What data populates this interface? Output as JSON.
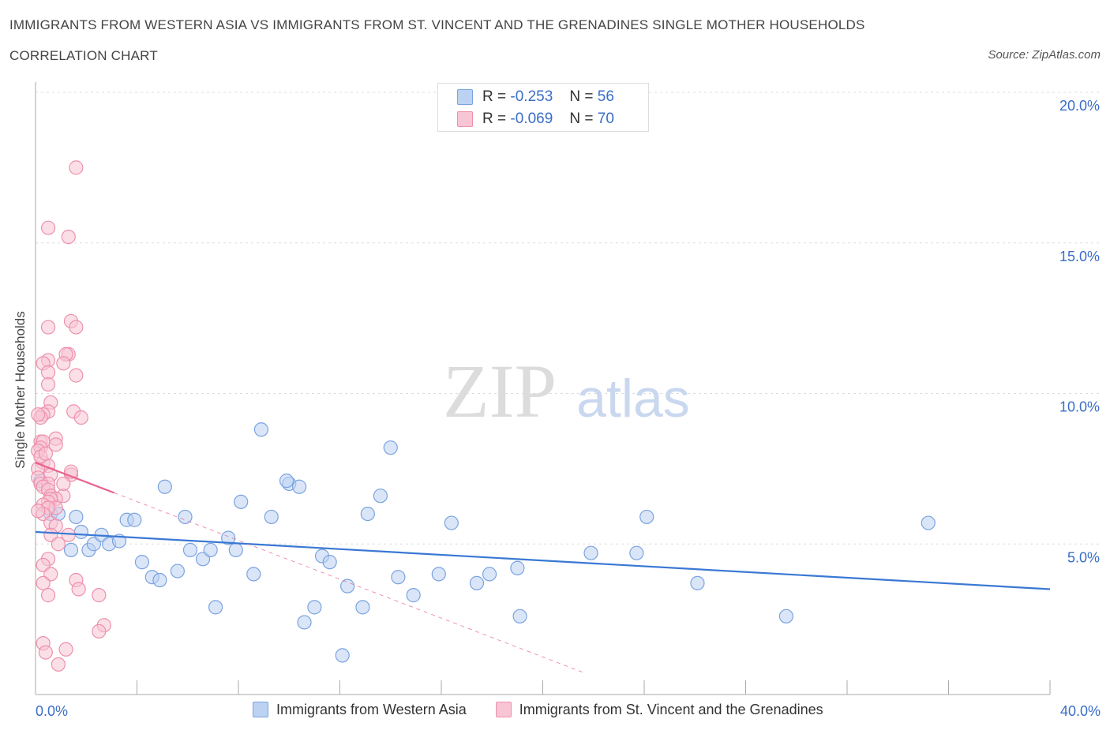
{
  "title": "IMMIGRANTS FROM WESTERN ASIA VS IMMIGRANTS FROM ST. VINCENT AND THE GRENADINES SINGLE MOTHER HOUSEHOLDS",
  "subtitle": "CORRELATION CHART",
  "source": "Source: ZipAtlas.com",
  "watermark": {
    "zip": "ZIP",
    "atlas": "atlas"
  },
  "legend_top": [
    {
      "r_label": "R =",
      "r_value": "-0.253",
      "n_label": "N =",
      "n_value": "56",
      "fill": "#bcd2f3",
      "stroke": "#7aa3e0"
    },
    {
      "r_label": "R =",
      "r_value": "-0.069",
      "n_label": "N =",
      "n_value": "70",
      "fill": "#f8c5d4",
      "stroke": "#ee90ad"
    }
  ],
  "chart_data": {
    "type": "scatter",
    "title": "Single Mother Households Correlation Chart",
    "xlabel": "",
    "ylabel": "Single Mother Households",
    "xlim": [
      0,
      40
    ],
    "ylim": [
      0,
      20
    ],
    "x_tick_labels": [
      "0.0%",
      "40.0%"
    ],
    "y_ticks": [
      {
        "value": 5,
        "label": "5.0%"
      },
      {
        "value": 10,
        "label": "10.0%"
      },
      {
        "value": 15,
        "label": "15.0%"
      },
      {
        "value": 20,
        "label": "20.0%"
      }
    ],
    "series": [
      {
        "name": "Immigrants from Western Asia",
        "fill": "#bcd2f3",
        "stroke": "#7aa3e0",
        "line_color": "#3a78d4",
        "trend": {
          "x0": 0,
          "y0": 5.4,
          "x1": 40,
          "y1": 3.5,
          "dashed_from_x": 40
        },
        "points": [
          [
            0.2,
            7.1
          ],
          [
            0.6,
            6.0
          ],
          [
            0.9,
            6.0
          ],
          [
            1.4,
            4.8
          ],
          [
            1.8,
            5.4
          ],
          [
            2.1,
            4.8
          ],
          [
            2.3,
            5.0
          ],
          [
            2.6,
            5.3
          ],
          [
            2.9,
            5.0
          ],
          [
            3.3,
            5.1
          ],
          [
            3.6,
            5.8
          ],
          [
            3.9,
            5.8
          ],
          [
            4.2,
            4.4
          ],
          [
            4.6,
            3.9
          ],
          [
            4.9,
            3.8
          ],
          [
            5.1,
            6.9
          ],
          [
            5.6,
            4.1
          ],
          [
            5.9,
            5.9
          ],
          [
            6.1,
            4.8
          ],
          [
            6.6,
            4.5
          ],
          [
            6.9,
            4.8
          ],
          [
            7.1,
            2.9
          ],
          [
            7.6,
            5.2
          ],
          [
            7.9,
            4.8
          ],
          [
            8.1,
            6.4
          ],
          [
            8.6,
            4.0
          ],
          [
            8.9,
            8.8
          ],
          [
            9.3,
            5.9
          ],
          [
            10.0,
            7.0
          ],
          [
            10.4,
            6.9
          ],
          [
            10.6,
            2.4
          ],
          [
            11.0,
            2.9
          ],
          [
            11.3,
            4.6
          ],
          [
            11.6,
            4.4
          ],
          [
            12.1,
            1.3
          ],
          [
            12.3,
            3.6
          ],
          [
            12.9,
            2.9
          ],
          [
            13.1,
            6.0
          ],
          [
            13.6,
            6.6
          ],
          [
            14.0,
            8.2
          ],
          [
            14.3,
            3.9
          ],
          [
            14.9,
            3.3
          ],
          [
            15.9,
            4.0
          ],
          [
            16.4,
            5.7
          ],
          [
            17.4,
            3.7
          ],
          [
            17.9,
            4.0
          ],
          [
            19.0,
            4.2
          ],
          [
            19.1,
            2.6
          ],
          [
            21.9,
            4.7
          ],
          [
            23.7,
            4.7
          ],
          [
            24.1,
            5.9
          ],
          [
            26.1,
            3.7
          ],
          [
            29.6,
            2.6
          ],
          [
            35.2,
            5.7
          ],
          [
            1.6,
            5.9
          ],
          [
            9.9,
            7.1
          ]
        ]
      },
      {
        "name": "Immigrants from St. Vincent and the Grenadines",
        "fill": "#f8c5d4",
        "stroke": "#ee90ad",
        "line_color": "#e8628d",
        "trend": {
          "x0": 0,
          "y0": 7.7,
          "x1": 3.1,
          "y1": 6.7,
          "dashed_to_x": 21.7
        },
        "points": [
          [
            1.6,
            17.5
          ],
          [
            0.5,
            15.5
          ],
          [
            1.3,
            15.2
          ],
          [
            1.4,
            12.4
          ],
          [
            0.5,
            12.2
          ],
          [
            1.6,
            12.2
          ],
          [
            1.3,
            11.3
          ],
          [
            1.2,
            11.3
          ],
          [
            0.5,
            11.1
          ],
          [
            0.3,
            11.0
          ],
          [
            1.1,
            11.0
          ],
          [
            0.5,
            10.7
          ],
          [
            1.6,
            10.6
          ],
          [
            0.5,
            10.3
          ],
          [
            0.6,
            9.7
          ],
          [
            0.5,
            9.4
          ],
          [
            0.3,
            9.3
          ],
          [
            1.5,
            9.4
          ],
          [
            1.8,
            9.2
          ],
          [
            0.2,
            9.2
          ],
          [
            0.1,
            9.3
          ],
          [
            0.8,
            8.5
          ],
          [
            0.2,
            8.4
          ],
          [
            0.3,
            8.4
          ],
          [
            0.8,
            8.3
          ],
          [
            0.2,
            8.2
          ],
          [
            0.1,
            8.1
          ],
          [
            0.3,
            7.7
          ],
          [
            0.5,
            7.6
          ],
          [
            0.1,
            7.5
          ],
          [
            1.4,
            7.3
          ],
          [
            1.4,
            7.4
          ],
          [
            0.6,
            7.3
          ],
          [
            0.1,
            7.2
          ],
          [
            0.2,
            7.0
          ],
          [
            0.5,
            7.0
          ],
          [
            0.3,
            6.9
          ],
          [
            0.5,
            6.8
          ],
          [
            0.6,
            6.6
          ],
          [
            1.1,
            6.6
          ],
          [
            0.8,
            6.5
          ],
          [
            0.6,
            6.5
          ],
          [
            0.5,
            6.4
          ],
          [
            0.3,
            6.3
          ],
          [
            0.8,
            6.2
          ],
          [
            0.5,
            6.2
          ],
          [
            0.3,
            6.0
          ],
          [
            0.1,
            6.1
          ],
          [
            0.6,
            5.7
          ],
          [
            0.8,
            5.6
          ],
          [
            1.3,
            5.3
          ],
          [
            0.6,
            5.3
          ],
          [
            0.9,
            5.0
          ],
          [
            0.5,
            4.5
          ],
          [
            0.3,
            4.3
          ],
          [
            0.6,
            4.0
          ],
          [
            1.6,
            3.8
          ],
          [
            0.3,
            3.7
          ],
          [
            1.7,
            3.5
          ],
          [
            0.5,
            3.3
          ],
          [
            2.5,
            3.3
          ],
          [
            2.7,
            2.3
          ],
          [
            2.5,
            2.1
          ],
          [
            0.3,
            1.7
          ],
          [
            1.2,
            1.5
          ],
          [
            0.4,
            1.4
          ],
          [
            0.9,
            1.0
          ],
          [
            0.2,
            7.9
          ],
          [
            0.4,
            8.0
          ],
          [
            1.1,
            7.0
          ]
        ]
      }
    ]
  }
}
